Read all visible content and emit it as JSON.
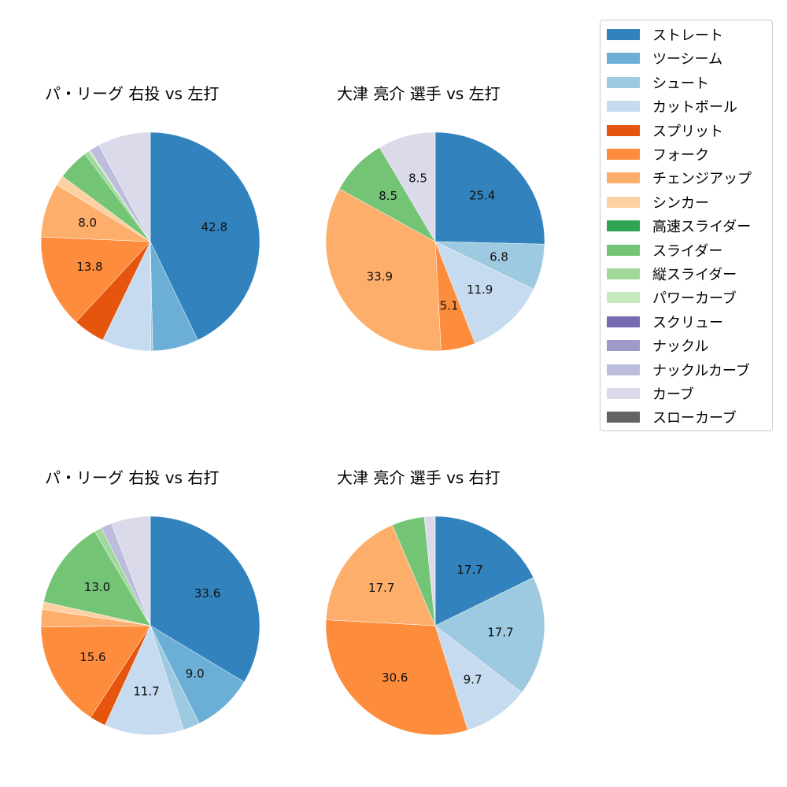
{
  "legend": {
    "items": [
      {
        "label": "ストレート",
        "color": "#3182bd"
      },
      {
        "label": "ツーシーム",
        "color": "#6baed6"
      },
      {
        "label": "シュート",
        "color": "#9ecae1"
      },
      {
        "label": "カットボール",
        "color": "#c6dbef"
      },
      {
        "label": "スプリット",
        "color": "#e6550d"
      },
      {
        "label": "フォーク",
        "color": "#fd8d3c"
      },
      {
        "label": "チェンジアップ",
        "color": "#fdae6b"
      },
      {
        "label": "シンカー",
        "color": "#fdd0a2"
      },
      {
        "label": "高速スライダー",
        "color": "#31a354"
      },
      {
        "label": "スライダー",
        "color": "#74c476"
      },
      {
        "label": "縦スライダー",
        "color": "#a1d99b"
      },
      {
        "label": "パワーカーブ",
        "color": "#c7e9c0"
      },
      {
        "label": "スクリュー",
        "color": "#756bb1"
      },
      {
        "label": "ナックル",
        "color": "#9e9ac8"
      },
      {
        "label": "ナックルカーブ",
        "color": "#bcbddc"
      },
      {
        "label": "カーブ",
        "color": "#dadaeb"
      },
      {
        "label": "スローカーブ",
        "color": "#636363"
      }
    ]
  },
  "chart_data": [
    {
      "type": "pie",
      "title": "パ・リーグ 右投 vs 左打",
      "categories": [
        "ストレート",
        "ツーシーム",
        "シュート",
        "カットボール",
        "スプリット",
        "フォーク",
        "チェンジアップ",
        "シンカー",
        "スライダー",
        "縦スライダー",
        "パワーカーブ",
        "ナックルカーブ",
        "カーブ"
      ],
      "values": [
        42.8,
        6.8,
        0.3,
        7.2,
        4.7,
        13.8,
        8.0,
        1.5,
        4.6,
        0.7,
        0.2,
        1.5,
        7.8
      ],
      "labels_shown": [
        "42.8",
        "",
        "",
        "",
        "",
        "13.8",
        "8.0",
        "",
        "",
        "",
        "",
        "",
        ""
      ],
      "start_angle": 90,
      "direction": "clockwise"
    },
    {
      "type": "pie",
      "title": "大津 亮介 選手 vs 左打",
      "categories": [
        "ストレート",
        "シュート",
        "カットボール",
        "フォーク",
        "チェンジアップ",
        "スライダー",
        "カーブ"
      ],
      "values": [
        25.4,
        6.8,
        11.9,
        5.1,
        33.9,
        8.5,
        8.5
      ],
      "labels_shown": [
        "25.4",
        "6.8",
        "11.9",
        "5.1",
        "33.9",
        "8.5",
        "8.5"
      ],
      "start_angle": 90,
      "direction": "clockwise"
    },
    {
      "type": "pie",
      "title": "パ・リーグ 右投 vs 右打",
      "categories": [
        "ストレート",
        "ツーシーム",
        "シュート",
        "カットボール",
        "スプリット",
        "フォーク",
        "チェンジアップ",
        "シンカー",
        "スライダー",
        "縦スライダー",
        "ナックルカーブ",
        "カーブ"
      ],
      "values": [
        33.6,
        9.0,
        2.5,
        11.7,
        2.4,
        15.6,
        2.6,
        1.1,
        13.0,
        1.1,
        1.6,
        5.8
      ],
      "labels_shown": [
        "33.6",
        "9.0",
        "",
        "11.7",
        "",
        "15.6",
        "",
        "",
        "13.0",
        "",
        "",
        ""
      ],
      "start_angle": 90,
      "direction": "clockwise"
    },
    {
      "type": "pie",
      "title": "大津 亮介 選手 vs 右打",
      "categories": [
        "ストレート",
        "シュート",
        "カットボール",
        "フォーク",
        "チェンジアップ",
        "スライダー",
        "カーブ"
      ],
      "values": [
        17.7,
        17.7,
        9.7,
        30.6,
        17.7,
        4.8,
        1.6
      ],
      "labels_shown": [
        "17.7",
        "17.7",
        "9.7",
        "30.6",
        "17.7",
        "",
        ""
      ],
      "start_angle": 90,
      "direction": "clockwise"
    }
  ]
}
